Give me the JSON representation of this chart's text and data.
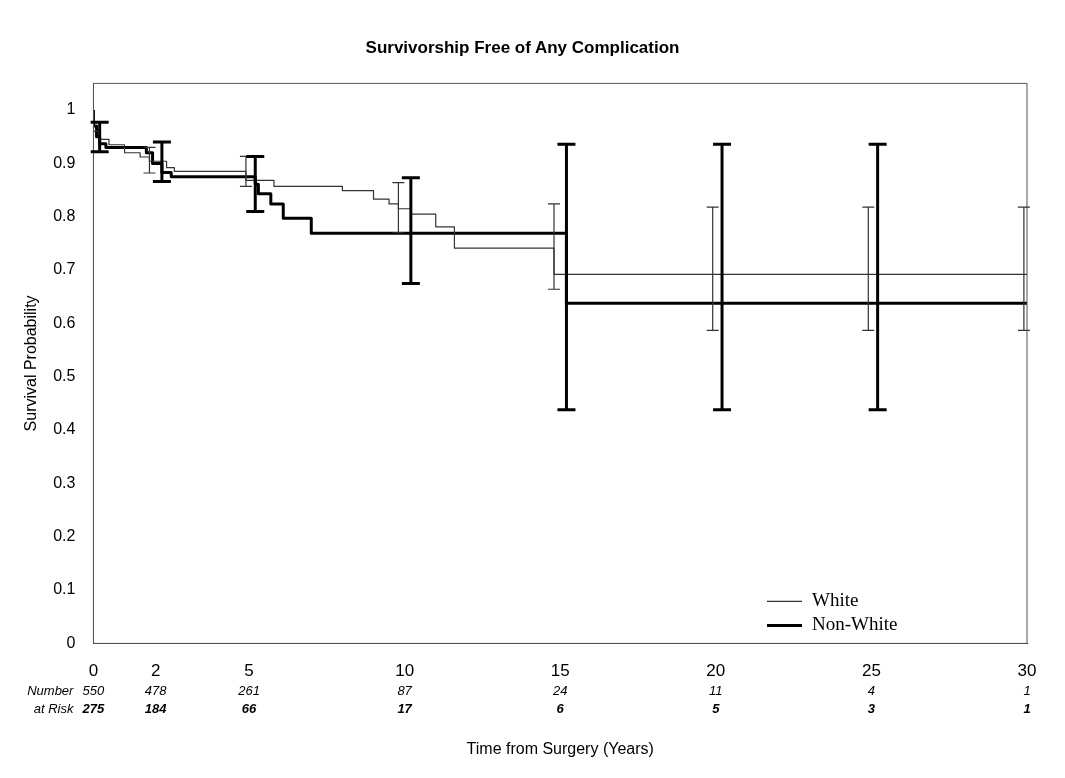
{
  "chart_data": {
    "type": "step",
    "title": "Survivorship Free of Any Complication",
    "xlabel": "Time from Surgery (Years)",
    "ylabel": "Survival Probability",
    "xlim": [
      0,
      30
    ],
    "xticks": [
      0,
      2,
      5,
      10,
      15,
      20,
      25,
      30
    ],
    "ylim": [
      0,
      1.05
    ],
    "yticks": [
      0,
      0.1,
      0.2,
      0.3,
      0.4,
      0.5,
      0.6,
      0.7,
      0.8,
      0.9,
      1
    ],
    "grid": false,
    "legend": "bottom right",
    "marker": "none",
    "line_style": "solid",
    "series": [
      {
        "name": "White",
        "color": "#333333",
        "x": [
          0,
          0.2,
          0.5,
          1.0,
          1.5,
          1.8,
          2.35,
          2.6,
          4.3,
          4.9,
          5.8,
          8.0,
          9.0,
          9.5,
          9.8,
          10.2,
          11.0,
          11.6,
          13.9,
          14.8,
          15.6,
          19.9,
          24.9,
          29.9,
          30
        ],
        "values": [
          1.0,
          0.96,
          0.945,
          0.935,
          0.92,
          0.912,
          0.904,
          0.892,
          0.885,
          0.885,
          0.868,
          0.857,
          0.849,
          0.833,
          0.824,
          0.815,
          0.805,
          0.781,
          0.741,
          0.741,
          0.692,
          0.692,
          0.692,
          0.692,
          0.692
        ],
        "errors": [
          null,
          null,
          null,
          null,
          null,
          [
            0.882,
            0.93
          ],
          null,
          null,
          null,
          [
            0.857,
            0.913
          ],
          null,
          null,
          null,
          null,
          [
            0.77,
            0.864
          ],
          null,
          null,
          null,
          null,
          [
            0.664,
            0.824
          ],
          null,
          [
            0.587,
            0.818
          ],
          [
            0.587,
            0.818
          ],
          [
            0.587,
            0.818
          ],
          null
        ]
      },
      {
        "name": "Non-White",
        "color": "#000000",
        "x": [
          0,
          0.1,
          0.2,
          0.4,
          1.7,
          1.9,
          2.2,
          2.5,
          2.9,
          5.2,
          5.3,
          5.7,
          6.1,
          7.0,
          7.2,
          10.2,
          15.2,
          15.4,
          20.2,
          25.2,
          30
        ],
        "values": [
          1.0,
          0.97,
          0.95,
          0.937,
          0.93,
          0.92,
          0.9,
          0.883,
          0.875,
          0.875,
          0.861,
          0.843,
          0.824,
          0.797,
          0.769,
          0.769,
          0.769,
          0.638,
          0.638,
          0.638,
          0.638
        ],
        "errors": [
          null,
          null,
          [
            0.922,
            0.977
          ],
          null,
          null,
          null,
          [
            0.866,
            0.94
          ],
          null,
          null,
          [
            0.81,
            0.913
          ],
          null,
          null,
          null,
          null,
          null,
          [
            0.675,
            0.873
          ],
          [
            0.438,
            0.936
          ],
          null,
          [
            0.438,
            0.936
          ],
          [
            0.438,
            0.936
          ],
          null
        ]
      }
    ],
    "annotations": [
      "Number at Risk",
      "550",
      "478",
      "261",
      "87",
      "24",
      "11",
      "4",
      "1",
      "275",
      "184",
      "66",
      "17",
      "6",
      "5",
      "3",
      "1"
    ]
  }
}
